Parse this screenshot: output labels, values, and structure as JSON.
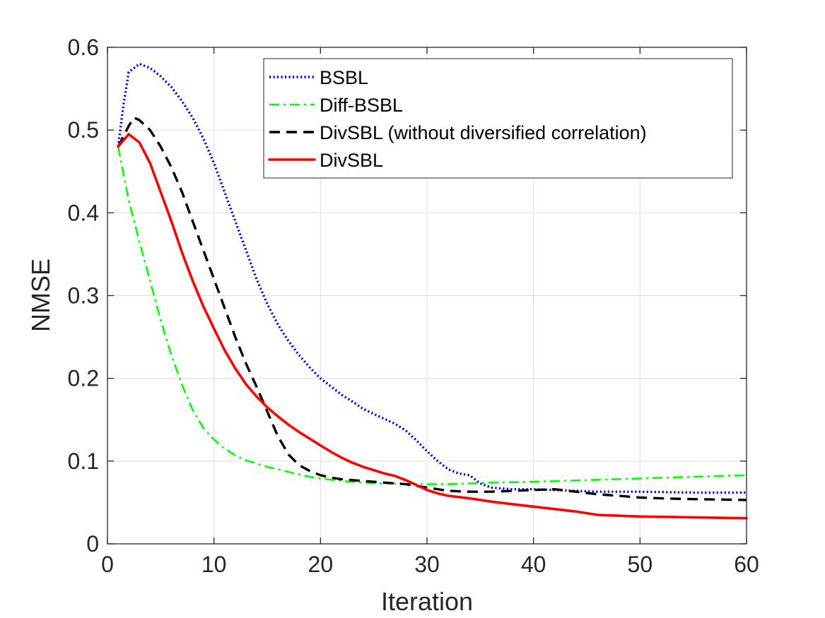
{
  "chart_data": {
    "type": "line",
    "title": "",
    "xlabel": "Iteration",
    "ylabel": "NMSE",
    "xlim": [
      0,
      60
    ],
    "ylim": [
      0,
      0.6
    ],
    "xticks": [
      0,
      10,
      20,
      30,
      40,
      50,
      60
    ],
    "xtick_labels": [
      "0",
      "10",
      "20",
      "30",
      "40",
      "50",
      "60"
    ],
    "yticks": [
      0,
      0.1,
      0.2,
      0.3,
      0.4,
      0.5,
      0.6
    ],
    "ytick_labels": [
      "0",
      "0.1",
      "0.2",
      "0.3",
      "0.4",
      "0.5",
      "0.6"
    ],
    "grid": true,
    "legend_position": "top-right",
    "series": [
      {
        "name": "BSBL",
        "color": "#0000ff",
        "style": "dotted",
        "x": [
          1,
          1.5,
          2,
          3,
          4,
          5,
          6,
          7,
          8,
          9,
          10,
          11,
          12,
          13,
          14,
          15,
          16,
          17,
          18,
          19,
          20,
          21,
          22,
          23,
          24,
          25,
          26,
          27,
          28,
          29,
          30,
          31,
          32,
          33,
          34,
          35,
          36,
          38,
          40,
          42,
          44,
          46,
          48,
          50,
          55,
          60
        ],
        "y": [
          0.48,
          0.53,
          0.57,
          0.58,
          0.575,
          0.565,
          0.552,
          0.535,
          0.515,
          0.49,
          0.46,
          0.425,
          0.39,
          0.355,
          0.32,
          0.29,
          0.265,
          0.245,
          0.228,
          0.213,
          0.2,
          0.19,
          0.18,
          0.172,
          0.163,
          0.157,
          0.151,
          0.145,
          0.137,
          0.125,
          0.112,
          0.1,
          0.09,
          0.085,
          0.083,
          0.073,
          0.068,
          0.066,
          0.066,
          0.065,
          0.064,
          0.063,
          0.063,
          0.063,
          0.062,
          0.062
        ]
      },
      {
        "name": "Diff-BSBL",
        "color": "#00ff00",
        "style": "dashdot",
        "x": [
          1,
          2,
          3,
          4,
          5,
          6,
          7,
          8,
          9,
          10,
          11,
          12,
          13,
          14,
          15,
          16,
          17,
          18,
          19,
          20,
          22,
          24,
          26,
          28,
          30,
          32,
          34,
          36,
          40,
          45,
          50,
          55,
          60
        ],
        "y": [
          0.48,
          0.415,
          0.365,
          0.318,
          0.27,
          0.228,
          0.192,
          0.162,
          0.14,
          0.126,
          0.115,
          0.107,
          0.101,
          0.097,
          0.093,
          0.09,
          0.087,
          0.084,
          0.081,
          0.079,
          0.076,
          0.074,
          0.073,
          0.073,
          0.072,
          0.072,
          0.073,
          0.074,
          0.075,
          0.077,
          0.079,
          0.081,
          0.083
        ]
      },
      {
        "name": "DivSBL (without diversified correlation)",
        "color": "#000000",
        "style": "dashed",
        "x": [
          1,
          2,
          2.5,
          3,
          4,
          5,
          6,
          7,
          8,
          9,
          10,
          11,
          12,
          13,
          14,
          15,
          16,
          17,
          18,
          19,
          20,
          21,
          22,
          24,
          26,
          28,
          30,
          32,
          34,
          36,
          38,
          40,
          42,
          44,
          46,
          48,
          50,
          52,
          55,
          60
        ],
        "y": [
          0.48,
          0.505,
          0.515,
          0.512,
          0.5,
          0.48,
          0.455,
          0.425,
          0.39,
          0.355,
          0.32,
          0.285,
          0.25,
          0.218,
          0.19,
          0.16,
          0.13,
          0.108,
          0.095,
          0.088,
          0.083,
          0.08,
          0.078,
          0.076,
          0.074,
          0.072,
          0.068,
          0.064,
          0.063,
          0.063,
          0.064,
          0.065,
          0.066,
          0.063,
          0.06,
          0.058,
          0.056,
          0.055,
          0.054,
          0.053
        ]
      },
      {
        "name": "DivSBL",
        "color": "#ff0000",
        "style": "solid",
        "x": [
          1,
          2,
          3,
          4,
          5,
          6,
          7,
          8,
          9,
          10,
          11,
          12,
          13,
          14,
          15,
          16,
          17,
          18,
          19,
          20,
          21,
          22,
          23,
          24,
          25,
          26,
          27,
          28,
          29,
          30,
          31,
          32,
          34,
          36,
          38,
          40,
          42,
          44,
          45,
          46,
          48,
          50,
          55,
          60
        ],
        "y": [
          0.48,
          0.495,
          0.485,
          0.46,
          0.425,
          0.39,
          0.352,
          0.318,
          0.287,
          0.26,
          0.234,
          0.212,
          0.193,
          0.178,
          0.165,
          0.154,
          0.144,
          0.135,
          0.127,
          0.119,
          0.111,
          0.104,
          0.098,
          0.093,
          0.089,
          0.085,
          0.082,
          0.077,
          0.071,
          0.065,
          0.061,
          0.058,
          0.055,
          0.051,
          0.048,
          0.045,
          0.042,
          0.039,
          0.037,
          0.035,
          0.034,
          0.033,
          0.032,
          0.031
        ]
      }
    ]
  }
}
